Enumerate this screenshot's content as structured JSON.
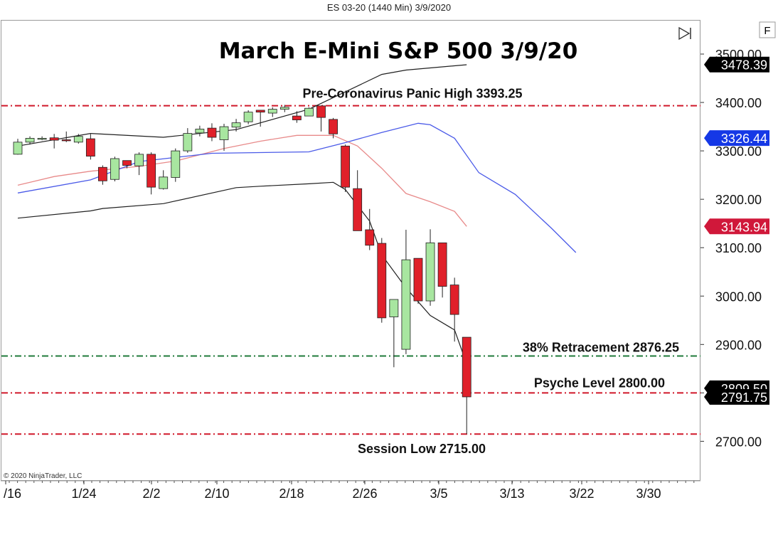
{
  "window": {
    "title": "ES 03-20 (1440 Min)  3/9/2020"
  },
  "toolbar": {
    "f_label": "F",
    "play_icon": "skip-to-end-icon"
  },
  "copyright": "© 2020 NinjaTrader, LLC",
  "colors": {
    "up_candle": "#a8e6a0",
    "down_candle": "#e0202a",
    "line_red": "#d0182a",
    "line_green": "#1f7a3a",
    "upper_sma": "#e88a8a",
    "middle_sma": "#4a5ae8",
    "bollinger": "#202020",
    "tag_black": "#000000",
    "tag_blue": "#1538e6",
    "tag_red": "#d0183a"
  },
  "chart_data": {
    "type": "candlestick",
    "title": "March E-Mini S&P 500 3/9/20",
    "ylim": [
      2620,
      3540
    ],
    "y_ticks": [
      2700,
      2800,
      2900,
      3000,
      3100,
      3200,
      3300,
      3400,
      3500
    ],
    "y_tick_labels": [
      "2700.00",
      "2800.00",
      "2900.00",
      "3000.00",
      "3100.00",
      "3200.00",
      "3300.00",
      "3400.00",
      "3500.00"
    ],
    "x_tick_labels": [
      "/16",
      "1/24",
      "2/2",
      "2/10",
      "2/18",
      "2/26",
      "3/5",
      "3/13",
      "3/22",
      "3/30"
    ],
    "candles": [
      {
        "o": 3293,
        "h": 3325,
        "l": 3292,
        "c": 3318
      },
      {
        "o": 3318,
        "h": 3330,
        "l": 3313,
        "c": 3326
      },
      {
        "o": 3326,
        "h": 3330,
        "l": 3322,
        "c": 3326
      },
      {
        "o": 3327,
        "h": 3335,
        "l": 3305,
        "c": 3322
      },
      {
        "o": 3323,
        "h": 3340,
        "l": 3318,
        "c": 3321
      },
      {
        "o": 3318,
        "h": 3335,
        "l": 3315,
        "c": 3330
      },
      {
        "o": 3325,
        "h": 3335,
        "l": 3282,
        "c": 3289
      },
      {
        "o": 3266,
        "h": 3270,
        "l": 3230,
        "c": 3238
      },
      {
        "o": 3241,
        "h": 3288,
        "l": 3237,
        "c": 3284
      },
      {
        "o": 3280,
        "h": 3280,
        "l": 3264,
        "c": 3270
      },
      {
        "o": 3269,
        "h": 3297,
        "l": 3250,
        "c": 3293
      },
      {
        "o": 3293,
        "h": 3297,
        "l": 3210,
        "c": 3225
      },
      {
        "o": 3222,
        "h": 3260,
        "l": 3220,
        "c": 3246
      },
      {
        "o": 3245,
        "h": 3305,
        "l": 3236,
        "c": 3300
      },
      {
        "o": 3300,
        "h": 3347,
        "l": 3296,
        "c": 3336
      },
      {
        "o": 3337,
        "h": 3352,
        "l": 3330,
        "c": 3345
      },
      {
        "o": 3347,
        "h": 3357,
        "l": 3320,
        "c": 3328
      },
      {
        "o": 3323,
        "h": 3356,
        "l": 3300,
        "c": 3350
      },
      {
        "o": 3349,
        "h": 3366,
        "l": 3340,
        "c": 3358
      },
      {
        "o": 3360,
        "h": 3384,
        "l": 3355,
        "c": 3380
      },
      {
        "o": 3384,
        "h": 3384,
        "l": 3350,
        "c": 3380
      },
      {
        "o": 3378,
        "h": 3390,
        "l": 3370,
        "c": 3386
      },
      {
        "o": 3386,
        "h": 3395,
        "l": 3380,
        "c": 3390
      },
      {
        "o": 3372,
        "h": 3382,
        "l": 3358,
        "c": 3364
      },
      {
        "o": 3372,
        "h": 3390,
        "l": 3372,
        "c": 3388
      },
      {
        "o": 3393,
        "h": 3393,
        "l": 3340,
        "c": 3369
      },
      {
        "o": 3365,
        "h": 3368,
        "l": 3326,
        "c": 3335
      },
      {
        "o": 3310,
        "h": 3313,
        "l": 3215,
        "c": 3225
      },
      {
        "o": 3222,
        "h": 3260,
        "l": 3137,
        "c": 3135
      },
      {
        "o": 3137,
        "h": 3180,
        "l": 3095,
        "c": 3105
      },
      {
        "o": 3109,
        "h": 3120,
        "l": 2945,
        "c": 2955
      },
      {
        "o": 2957,
        "h": 2993,
        "l": 2853,
        "c": 2993
      },
      {
        "o": 2890,
        "h": 3137,
        "l": 2880,
        "c": 3075
      },
      {
        "o": 3078,
        "h": 3078,
        "l": 2984,
        "c": 2990
      },
      {
        "o": 2990,
        "h": 3138,
        "l": 2980,
        "c": 3110
      },
      {
        "o": 3110,
        "h": 3110,
        "l": 2997,
        "c": 3020
      },
      {
        "o": 3023,
        "h": 3038,
        "l": 2906,
        "c": 2962
      },
      {
        "o": 2915,
        "h": 2915,
        "l": 2715,
        "c": 2791.75
      }
    ],
    "series": [
      {
        "name": "",
        "type": "upper-band",
        "x_index": [
          0,
          6,
          12,
          18,
          24,
          30,
          32,
          37
        ],
        "values": [
          3310,
          3336,
          3328,
          3344,
          3386,
          3458,
          3467,
          3478
        ]
      },
      {
        "name": "",
        "type": "lower-band",
        "x_index": [
          0,
          6,
          7,
          12,
          18,
          20,
          24,
          26,
          27,
          29,
          30,
          32,
          34,
          36,
          37
        ],
        "values": [
          3161,
          3176,
          3181,
          3191,
          3224,
          3227,
          3232,
          3235,
          3220,
          3155,
          3085,
          3017,
          2960,
          2930,
          2860
        ]
      },
      {
        "name": "",
        "type": "sma-short",
        "x_index": [
          0,
          3,
          6,
          10,
          13,
          17,
          20,
          23,
          26,
          28,
          30,
          32,
          34,
          36,
          37
        ],
        "values": [
          3229,
          3247,
          3258,
          3268,
          3279,
          3305,
          3320,
          3332,
          3332,
          3310,
          3264,
          3212,
          3195,
          3175,
          3144
        ]
      },
      {
        "name": "",
        "type": "sma-long",
        "x_index": [
          0,
          6,
          10,
          16,
          24,
          27,
          30,
          33,
          34,
          36,
          38,
          41,
          44,
          46
        ],
        "values": [
          3213,
          3240,
          3278,
          3295,
          3298,
          3317,
          3338,
          3357,
          3354,
          3326,
          3255,
          3210,
          3140,
          3090
        ]
      }
    ],
    "horizontal_lines": [
      {
        "label": "Pre-Coronavirus Panic High 3393.25",
        "value": 3393.25,
        "color": "red"
      },
      {
        "label": "38% Retracement 2876.25",
        "value": 2876.25,
        "color": "green"
      },
      {
        "label": "Psyche Level 2800.00",
        "value": 2800.0,
        "color": "red"
      },
      {
        "label": "Session Low 2715.00",
        "value": 2715.0,
        "color": "red"
      }
    ],
    "price_tags": [
      {
        "text": "3478.39",
        "value": 3478.39,
        "color": "black"
      },
      {
        "text": "3326.44",
        "value": 3326.44,
        "color": "blue"
      },
      {
        "text": "3143.94",
        "value": 3143.94,
        "color": "red"
      },
      {
        "text": "2809.50",
        "value": 2809.5,
        "color": "black"
      },
      {
        "text": "2791.75",
        "value": 2791.75,
        "color": "black"
      }
    ],
    "grid": false
  }
}
